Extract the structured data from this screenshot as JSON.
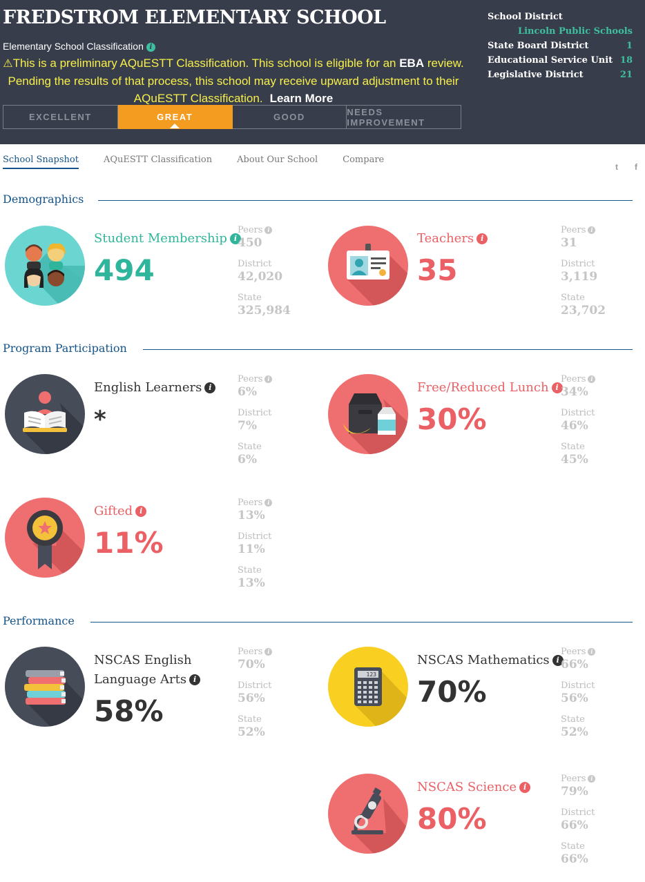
{
  "header": {
    "school_name": "FREDSTROM ELEMENTARY SCHOOL",
    "classification_label": "Elementary School Classification",
    "notice": {
      "before_eba": "This is a preliminary AQuESTT Classification. This school is eligible for an ",
      "eba": "EBA",
      "after_eba": " review. Pending the results of that process, this school may receive upward adjustment to their AQuESTT Classification.",
      "learn_more": "Learn More"
    },
    "tabs": [
      {
        "label": "EXCELLENT",
        "active": false
      },
      {
        "label": "GREAT",
        "active": true
      },
      {
        "label": "GOOD",
        "active": false
      },
      {
        "label": "NEEDS IMPROVEMENT",
        "active": false
      }
    ],
    "district": {
      "school_district_label": "School District",
      "school_district_value": "Lincoln Public Schools",
      "state_board_label": "State Board District",
      "state_board_value": "1",
      "esu_label": "Educational Service Unit",
      "esu_value": "18",
      "legislative_label": "Legislative District",
      "legislative_value": "21"
    }
  },
  "nav": {
    "items": [
      "School Snapshot",
      "AQuESTT Classification",
      "About Our School",
      "Compare"
    ],
    "twitter": "t",
    "facebook": "f"
  },
  "sections": {
    "demographics": "Demographics",
    "program": "Program Participation",
    "performance": "Performance"
  },
  "info_glyph": "i",
  "compare_labels": {
    "peers": "Peers",
    "district": "District",
    "state": "State"
  },
  "metrics": {
    "membership": {
      "label": "Student Membership",
      "value": "494",
      "peers": "450",
      "district": "42,020",
      "state": "325,984"
    },
    "teachers": {
      "label": "Teachers",
      "value": "35",
      "peers": "31",
      "district": "3,119",
      "state": "23,702"
    },
    "english_learners": {
      "label": "English Learners",
      "value": "*",
      "peers": "6%",
      "district": "7%",
      "state": "6%"
    },
    "lunch": {
      "label": "Free/Reduced Lunch",
      "value": "30%",
      "peers": "34%",
      "district": "46%",
      "state": "45%"
    },
    "gifted": {
      "label": "Gifted",
      "value": "11%",
      "peers": "13%",
      "district": "11%",
      "state": "13%"
    },
    "ela": {
      "label_line1": "NSCAS English",
      "label_line2": "Language Arts",
      "value": "58%",
      "peers": "70%",
      "district": "56%",
      "state": "52%"
    },
    "math": {
      "label": "NSCAS Mathematics",
      "value": "70%",
      "peers": "66%",
      "district": "56%",
      "state": "52%"
    },
    "science": {
      "label": "NSCAS Science",
      "value": "80%",
      "peers": "79%",
      "district": "66%",
      "state": "66%"
    }
  },
  "calculator_display": "123",
  "colors": {
    "header_bg": "#383d4b",
    "accent_orange": "#f39c1f",
    "teal": "#2fb59b",
    "coral": "#ea6065",
    "navy": "#14548a",
    "notice_yellow": "#f7ef4a"
  }
}
